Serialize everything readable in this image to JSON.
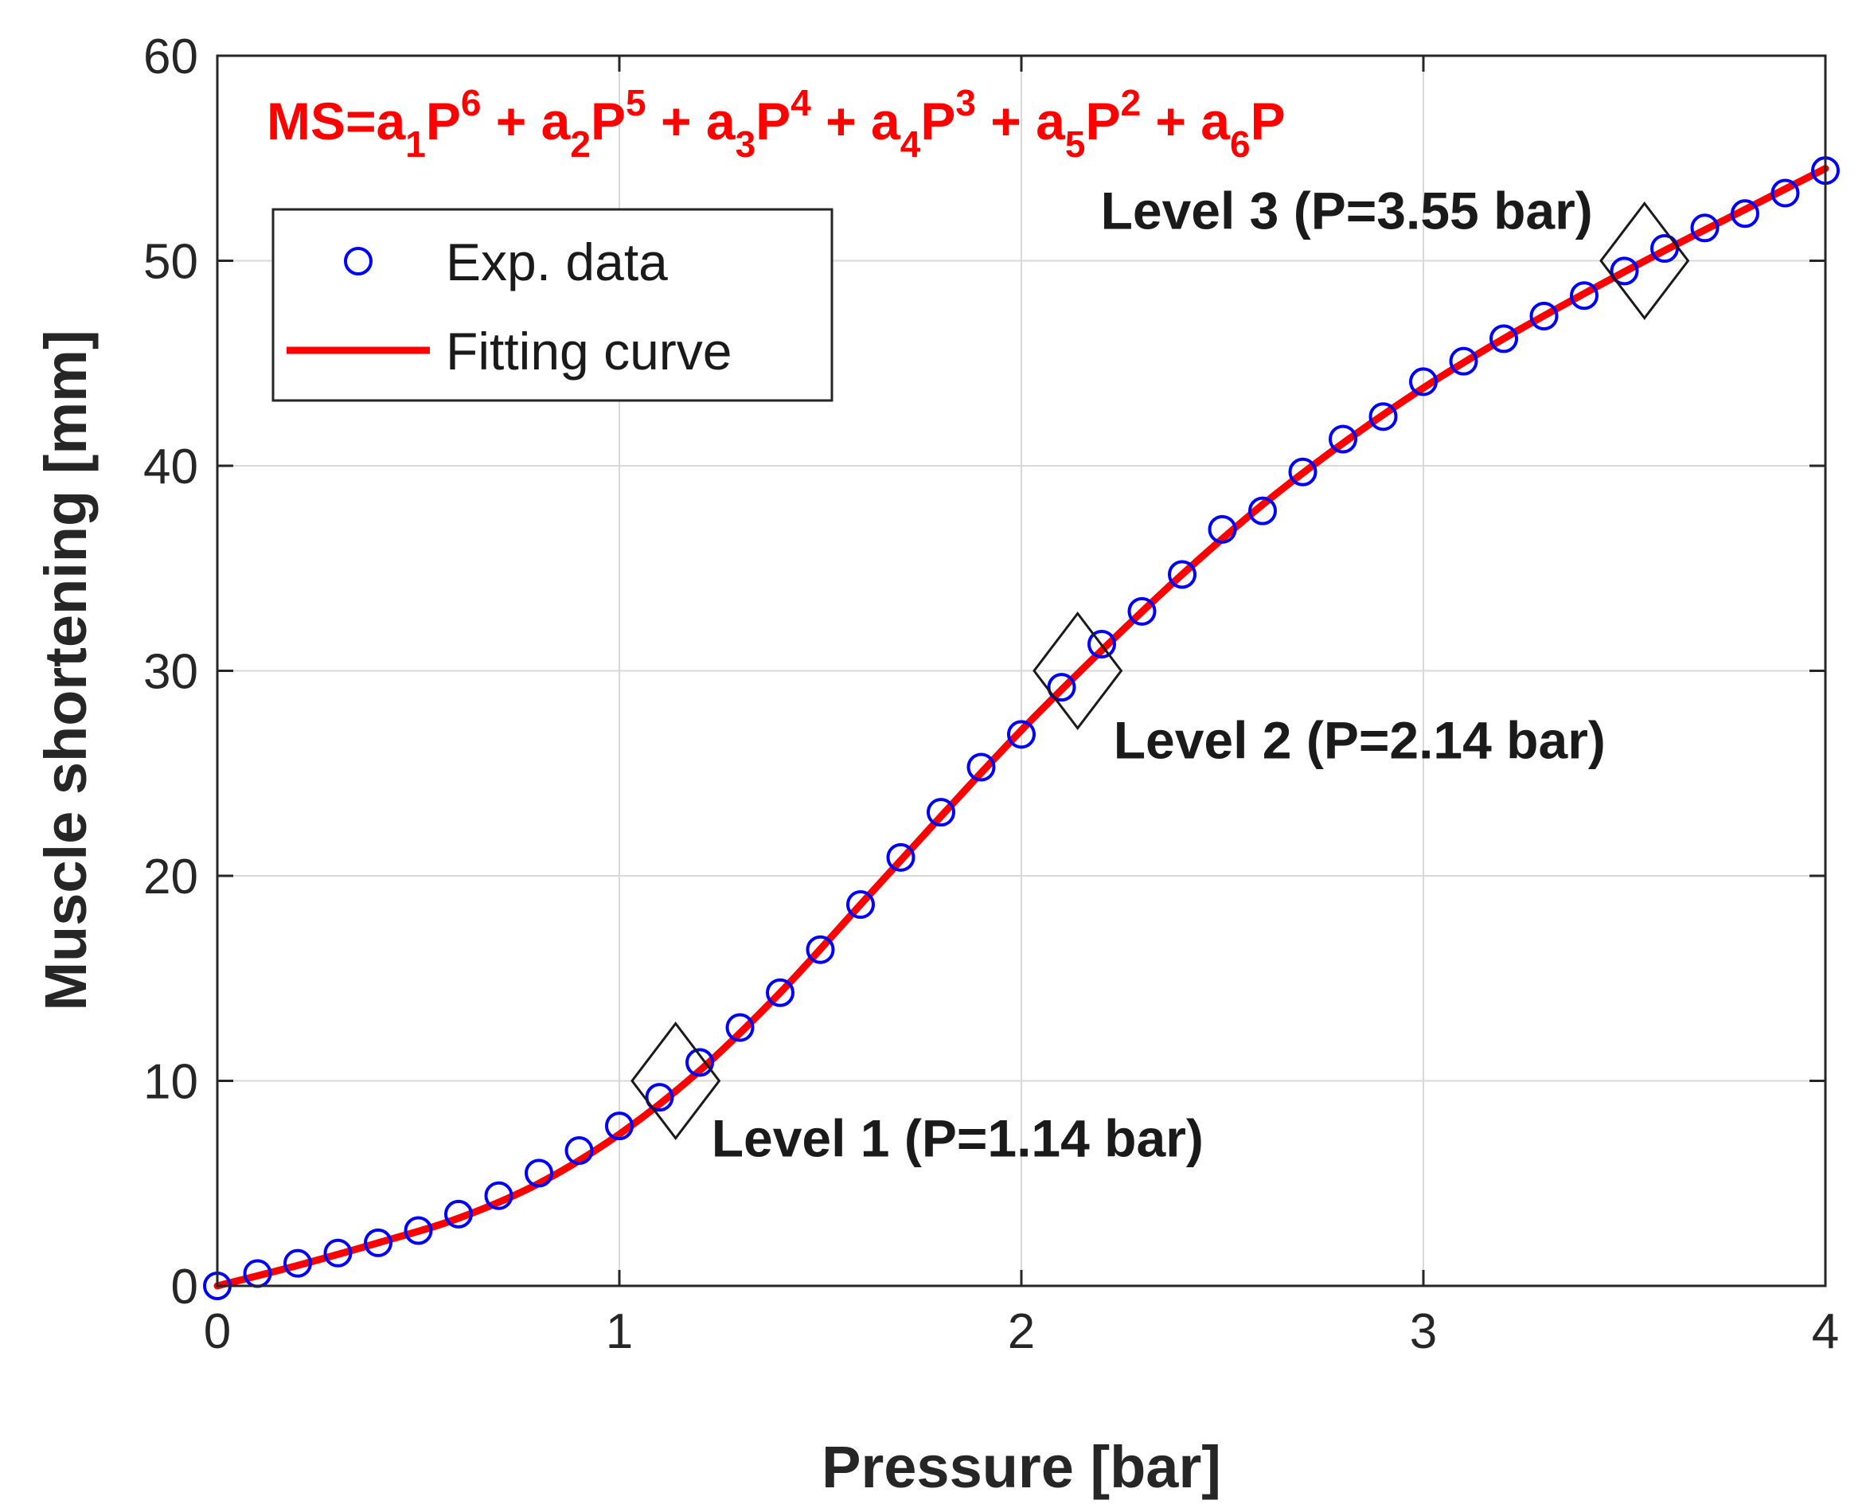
{
  "chart_data": {
    "type": "scatter",
    "title": "",
    "xlabel": "Pressure [bar]",
    "ylabel": "Muscle shortening [mm]",
    "xlim": [
      0,
      4
    ],
    "ylim": [
      0,
      60
    ],
    "grid": true,
    "x_ticks": [
      "0",
      "1",
      "2",
      "3",
      "4"
    ],
    "y_ticks": [
      "0",
      "10",
      "20",
      "30",
      "40",
      "50",
      "60"
    ],
    "legend_position": "top-left",
    "formula": {
      "parts": [
        {
          "text": "MS=a",
          "style": "normal"
        },
        {
          "text": "1",
          "style": "sub"
        },
        {
          "text": "P",
          "style": "normal"
        },
        {
          "text": "6",
          "style": "sup"
        },
        {
          "text": " + a",
          "style": "normal"
        },
        {
          "text": "2",
          "style": "sub"
        },
        {
          "text": "P",
          "style": "normal"
        },
        {
          "text": "5",
          "style": "sup"
        },
        {
          "text": " + a",
          "style": "normal"
        },
        {
          "text": "3",
          "style": "sub"
        },
        {
          "text": "P",
          "style": "normal"
        },
        {
          "text": "4",
          "style": "sup"
        },
        {
          "text": " + a",
          "style": "normal"
        },
        {
          "text": "4",
          "style": "sub"
        },
        {
          "text": "P",
          "style": "normal"
        },
        {
          "text": "3",
          "style": "sup"
        },
        {
          "text": " + a",
          "style": "normal"
        },
        {
          "text": "5",
          "style": "sub"
        },
        {
          "text": "P",
          "style": "normal"
        },
        {
          "text": "2",
          "style": "sup"
        },
        {
          "text": " + a",
          "style": "normal"
        },
        {
          "text": "6",
          "style": "sub"
        },
        {
          "text": "P",
          "style": "normal"
        }
      ],
      "color": "#ff0000"
    },
    "series": [
      {
        "name": "Exp. data",
        "kind": "markers",
        "marker": "circle",
        "color": "#0000ff",
        "x": [
          0,
          0.1,
          0.2,
          0.3,
          0.4,
          0.5,
          0.6,
          0.7,
          0.8,
          0.9,
          1.0,
          1.1,
          1.2,
          1.3,
          1.4,
          1.5,
          1.6,
          1.7,
          1.8,
          1.9,
          2.0,
          2.1,
          2.2,
          2.3,
          2.4,
          2.5,
          2.6,
          2.7,
          2.8,
          2.9,
          3.0,
          3.1,
          3.2,
          3.3,
          3.4,
          3.5,
          3.6,
          3.7,
          3.8,
          3.9,
          4.0
        ],
        "y": [
          0.0,
          0.6,
          1.1,
          1.6,
          2.1,
          2.7,
          3.5,
          4.4,
          5.5,
          6.6,
          7.8,
          9.2,
          10.9,
          12.6,
          14.3,
          16.4,
          18.6,
          20.9,
          23.1,
          25.3,
          26.9,
          29.2,
          31.3,
          32.9,
          34.7,
          36.9,
          37.8,
          39.7,
          41.3,
          42.4,
          44.1,
          45.1,
          46.2,
          47.3,
          48.3,
          49.5,
          50.6,
          51.6,
          52.3,
          53.3,
          54.4
        ]
      },
      {
        "name": "Fitting curve",
        "kind": "line",
        "color": "#ff0000",
        "x": [
          0,
          0.2,
          0.4,
          0.6,
          0.8,
          1.0,
          1.2,
          1.4,
          1.6,
          1.8,
          2.0,
          2.2,
          2.4,
          2.6,
          2.8,
          3.0,
          3.2,
          3.4,
          3.6,
          3.8,
          4.0
        ],
        "y": [
          0.0,
          1.0,
          2.1,
          3.3,
          5.0,
          7.4,
          10.5,
          14.3,
          18.6,
          22.9,
          27.1,
          31.0,
          34.7,
          38.1,
          41.1,
          43.8,
          46.2,
          48.4,
          50.5,
          52.5,
          54.5
        ]
      }
    ],
    "annotations": [
      {
        "label": "Level 1 (P=1.14 bar)",
        "x": 1.14,
        "y": 10,
        "marker": "diamond"
      },
      {
        "label": "Level 2 (P=2.14 bar)",
        "x": 2.14,
        "y": 30,
        "marker": "diamond"
      },
      {
        "label": "Level 3 (P=3.55 bar)",
        "x": 3.55,
        "y": 50,
        "marker": "diamond"
      }
    ]
  }
}
